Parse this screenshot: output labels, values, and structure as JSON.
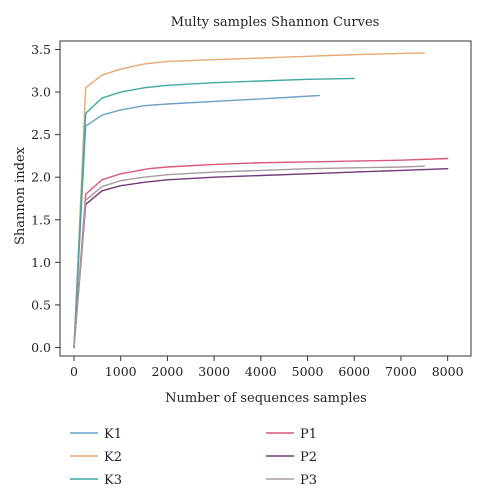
{
  "chart_data": {
    "type": "line",
    "title": "Multy samples Shannon Curves",
    "xlabel": "Number of sequences samples",
    "ylabel": "Shannon index",
    "xlim": [
      -300,
      8500
    ],
    "ylim": [
      -0.1,
      3.6
    ],
    "xticks": [
      0,
      1000,
      2000,
      3000,
      4000,
      5000,
      6000,
      7000,
      8000
    ],
    "yticks": [
      0.0,
      0.5,
      1.0,
      1.5,
      2.0,
      2.5,
      3.0,
      3.5
    ],
    "grid": false,
    "legend_position": "bottom",
    "series": [
      {
        "name": "K1",
        "color": "#6aa3c4",
        "x": [
          0,
          250,
          600,
          1000,
          1500,
          2000,
          3000,
          4000,
          5250
        ],
        "y": [
          0.0,
          2.6,
          2.73,
          2.79,
          2.84,
          2.86,
          2.89,
          2.92,
          2.96
        ]
      },
      {
        "name": "K2",
        "color": "#e9a870",
        "x": [
          0,
          250,
          600,
          1000,
          1500,
          2000,
          3000,
          4000,
          5000,
          6000,
          7500
        ],
        "y": [
          0.0,
          3.05,
          3.2,
          3.27,
          3.33,
          3.36,
          3.38,
          3.4,
          3.42,
          3.44,
          3.46
        ]
      },
      {
        "name": "K3",
        "color": "#3fa7a5",
        "x": [
          0,
          250,
          600,
          1000,
          1500,
          2000,
          3000,
          4000,
          5000,
          6000
        ],
        "y": [
          0.0,
          2.75,
          2.93,
          3.0,
          3.05,
          3.08,
          3.11,
          3.13,
          3.15,
          3.16
        ]
      },
      {
        "name": "P1",
        "color": "#d9587a",
        "x": [
          0,
          250,
          600,
          1000,
          1600,
          2000,
          3000,
          4000,
          5000,
          6000,
          7000,
          8000
        ],
        "y": [
          0.0,
          1.8,
          1.97,
          2.04,
          2.1,
          2.12,
          2.15,
          2.17,
          2.18,
          2.19,
          2.2,
          2.22
        ]
      },
      {
        "name": "P2",
        "color": "#73397a",
        "x": [
          0,
          250,
          600,
          1000,
          1500,
          2000,
          3000,
          4000,
          5000,
          6000,
          7000,
          8000
        ],
        "y": [
          0.0,
          1.68,
          1.84,
          1.9,
          1.94,
          1.97,
          2.0,
          2.02,
          2.04,
          2.06,
          2.08,
          2.1
        ]
      },
      {
        "name": "P3",
        "color": "#a79aa0",
        "x": [
          0,
          250,
          600,
          1000,
          1500,
          2000,
          3000,
          4000,
          5000,
          6000,
          7000,
          7500
        ],
        "y": [
          0.0,
          1.73,
          1.89,
          1.96,
          2.0,
          2.03,
          2.06,
          2.08,
          2.1,
          2.11,
          2.12,
          2.13
        ]
      }
    ]
  }
}
